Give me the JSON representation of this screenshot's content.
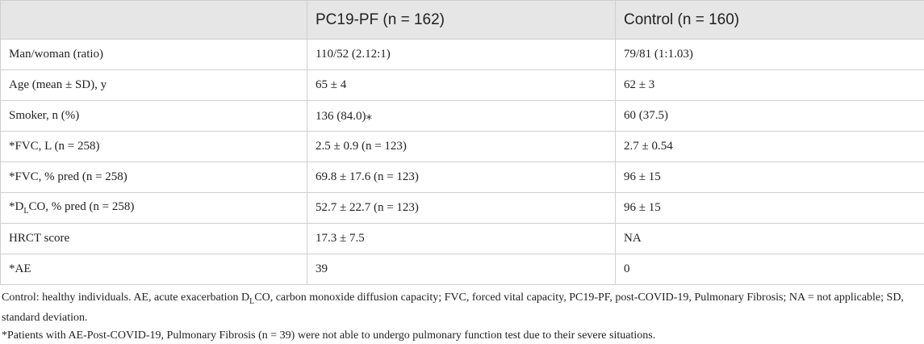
{
  "table": {
    "header": [
      "",
      "PC19-PF (n = 162)",
      "Control (n = 160)"
    ],
    "rows": [
      [
        "Man/woman (ratio)",
        "110/52 (2.12:1)",
        "79/81 (1:1.03)"
      ],
      [
        "Age (mean ± SD), y",
        "65 ± 4",
        "62 ± 3"
      ],
      [
        "Smoker, n (%)",
        "136 (84.0)⁎",
        "60 (37.5)"
      ],
      [
        "*FVC, L (n = 258)",
        "2.5 ± 0.9 (n = 123)",
        "2.7 ± 0.54"
      ],
      [
        "*FVC, % pred (n = 258)",
        "69.8 ± 17.6 (n = 123)",
        "96 ± 15"
      ],
      [
        [
          {
            "text": "*D"
          },
          {
            "text": "L",
            "sub": true
          },
          {
            "text": "CO, % pred (n = 258)"
          }
        ],
        "52.7 ± 22.7 (n = 123)",
        "96 ± 15"
      ],
      [
        "HRCT score",
        "17.3 ± 7.5",
        "NA"
      ],
      [
        "*AE",
        "39",
        "0"
      ]
    ]
  },
  "footnotes": [
    [
      {
        "text": "Control: healthy individuals. AE, acute exacerbation D"
      },
      {
        "text": "L",
        "sub": true
      },
      {
        "text": "CO, carbon monoxide diffusion capacity; FVC, forced vital capacity, PC19-PF, post-COVID-19, Pulmonary Fibrosis; NA = not applicable; SD, standard deviation."
      }
    ],
    [
      {
        "text": "*Patients with AE-Post-COVID-19, Pulmonary Fibrosis (n = 39) were not able to undergo pulmonary function test due to their severe situations."
      }
    ]
  ]
}
